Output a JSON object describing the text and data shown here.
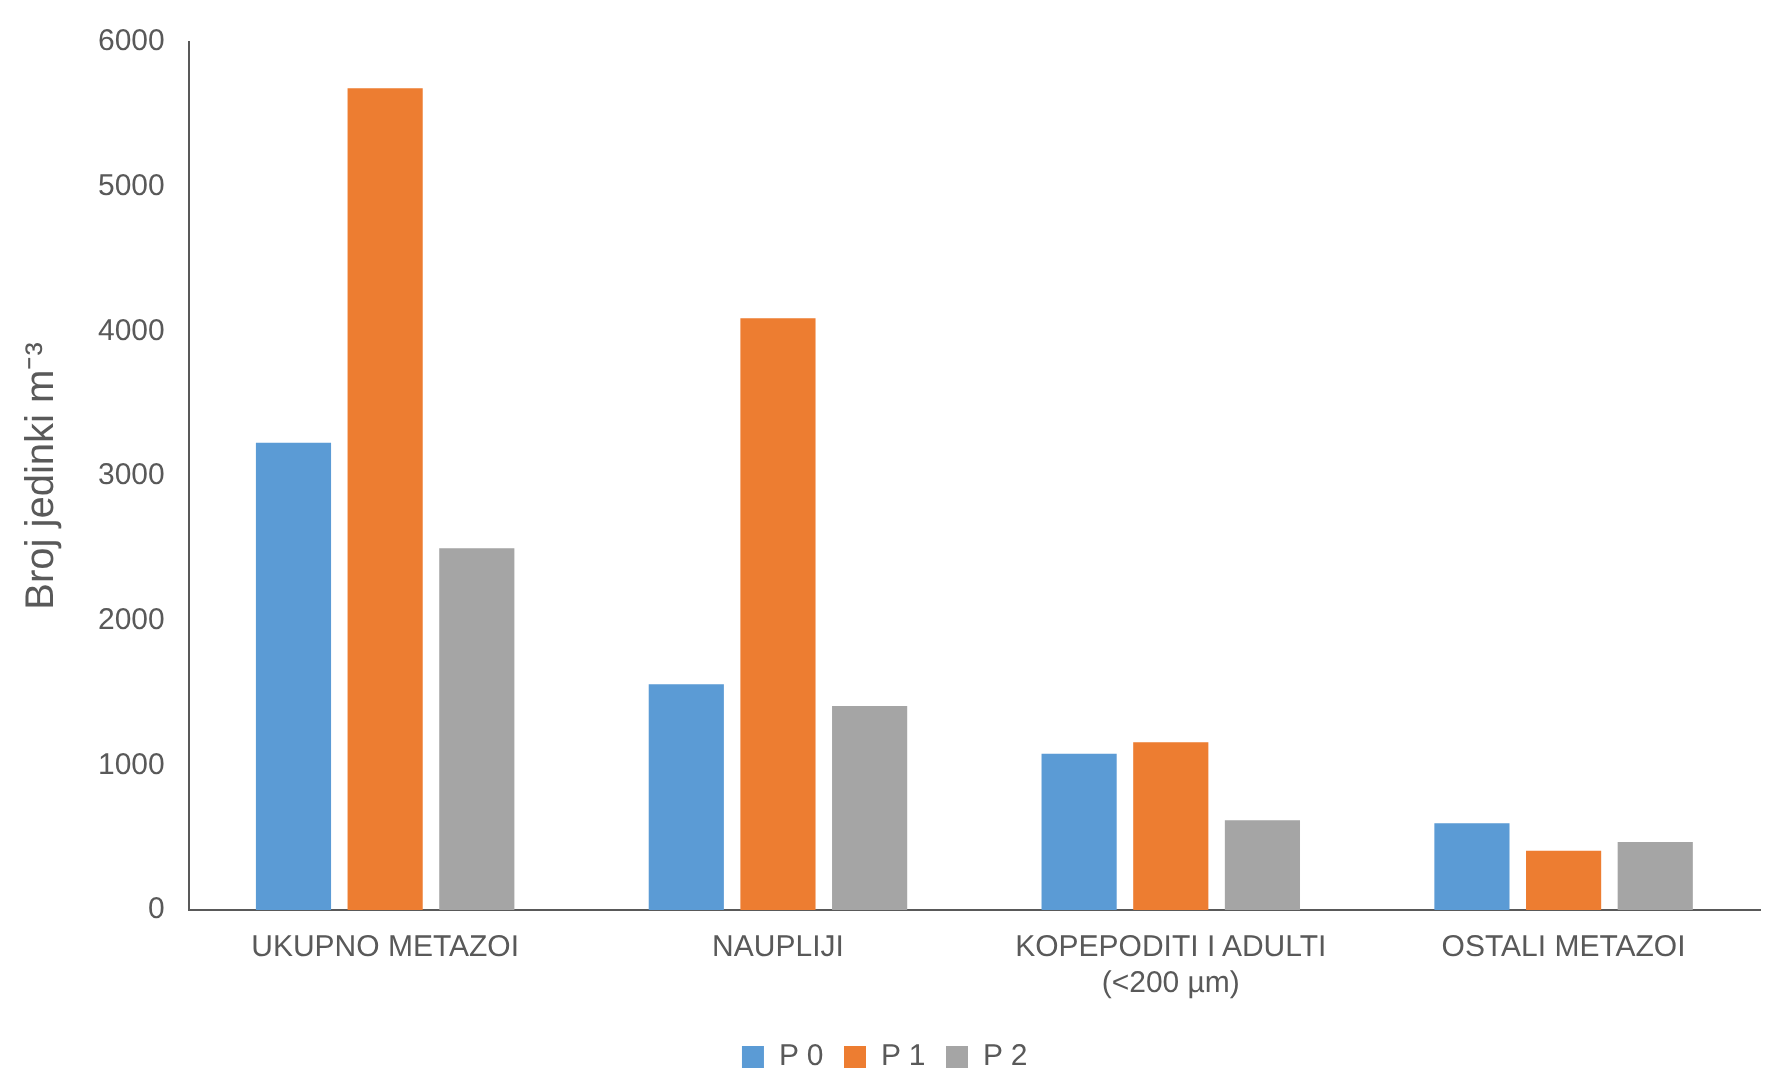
{
  "chart_data": {
    "type": "bar",
    "ylabel": "Broj jedinki m⁻³",
    "categories": [
      "UKUPNO METAZOI",
      "NAUPLIJI",
      "KOPEPODITI I ADULTI (<200 µm)",
      "OSTALI METAZOI"
    ],
    "series": [
      {
        "name": "P 0",
        "color": "#5b9bd5",
        "values": [
          3230,
          1560,
          1080,
          600
        ]
      },
      {
        "name": "P 1",
        "color": "#ed7d31",
        "values": [
          5680,
          4090,
          1160,
          410
        ]
      },
      {
        "name": "P 2",
        "color": "#a5a5a5",
        "values": [
          2500,
          1410,
          620,
          470
        ]
      }
    ],
    "ylim": [
      0,
      6000
    ],
    "yticks": [
      0,
      1000,
      2000,
      3000,
      4000,
      5000,
      6000
    ],
    "grid": false,
    "legend": "bottom"
  }
}
